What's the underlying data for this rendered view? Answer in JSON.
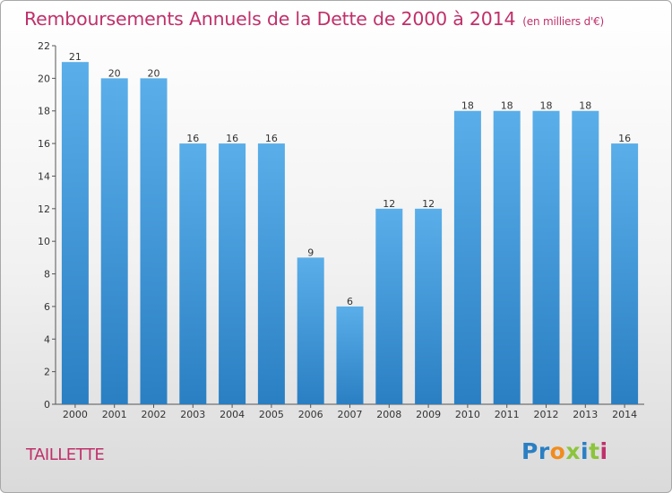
{
  "chart_data": {
    "type": "bar",
    "title": "Remboursements Annuels de la Dette de 2000 à 2014",
    "subtitle": "(en milliers d'€)",
    "categories": [
      "2000",
      "2001",
      "2002",
      "2003",
      "2004",
      "2005",
      "2006",
      "2007",
      "2008",
      "2009",
      "2010",
      "2011",
      "2012",
      "2013",
      "2014"
    ],
    "values": [
      21,
      20,
      20,
      16,
      16,
      16,
      9,
      6,
      12,
      12,
      18,
      18,
      18,
      18,
      16
    ],
    "ylim": [
      0,
      22
    ],
    "yticks": [
      0,
      2,
      4,
      6,
      8,
      10,
      12,
      14,
      16,
      18,
      20,
      22
    ],
    "xlabel": "",
    "ylabel": "",
    "grid": false,
    "bar_color_top": "#5aaee9",
    "bar_color_bottom": "#2a7fc3"
  },
  "commune": "TAILLETTE",
  "logo": {
    "letters": [
      "P",
      "r",
      "o",
      "x",
      "i",
      "t",
      "i"
    ],
    "colors": [
      "#2a7fc3",
      "#2a7fc3",
      "#f08c1e",
      "#8cc43c",
      "#2a7fc3",
      "#8cc43c",
      "#c0306a"
    ]
  }
}
